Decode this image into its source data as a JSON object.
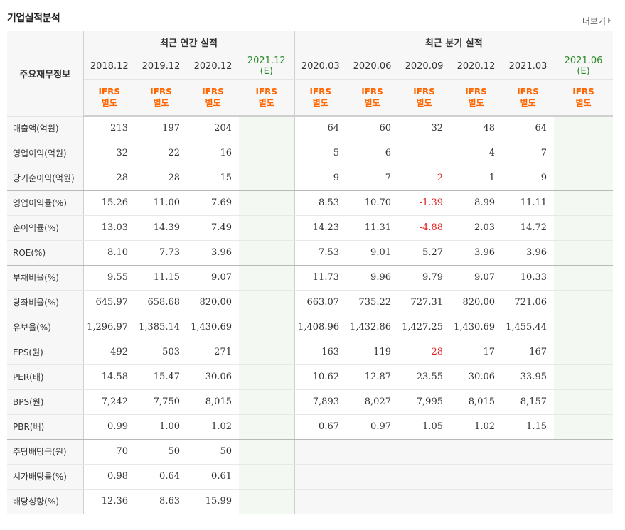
{
  "title": "기업실적분석",
  "more_label": "더보기",
  "header": {
    "row_label": "주요재무정보",
    "annual_label": "최근 연간 실적",
    "quarter_label": "최근 분기 실적",
    "annual_periods": [
      {
        "label": "2018.12",
        "est": ""
      },
      {
        "label": "2019.12",
        "est": ""
      },
      {
        "label": "2020.12",
        "est": ""
      },
      {
        "label": "2021.12",
        "est": "(E)"
      }
    ],
    "quarter_periods": [
      {
        "label": "2020.03",
        "est": ""
      },
      {
        "label": "2020.06",
        "est": ""
      },
      {
        "label": "2020.09",
        "est": ""
      },
      {
        "label": "2020.12",
        "est": ""
      },
      {
        "label": "2021.03",
        "est": ""
      },
      {
        "label": "2021.06",
        "est": "(E)"
      }
    ],
    "basis_line1": "IFRS",
    "basis_line2": "별도"
  },
  "colors": {
    "accent_orange": "#ff6600",
    "estimate_green": "#2a8a2a",
    "negative_red": "#e02020"
  },
  "rows": [
    {
      "label": "매출액(억원)",
      "group_end": false,
      "annual": [
        "213",
        "197",
        "204",
        ""
      ],
      "quarter": [
        "64",
        "60",
        "32",
        "48",
        "64",
        ""
      ]
    },
    {
      "label": "영업이익(억원)",
      "group_end": false,
      "annual": [
        "32",
        "22",
        "16",
        ""
      ],
      "quarter": [
        "5",
        "6",
        "-",
        "4",
        "7",
        ""
      ]
    },
    {
      "label": "당기순이익(억원)",
      "group_end": true,
      "annual": [
        "28",
        "28",
        "15",
        ""
      ],
      "quarter": [
        "9",
        "7",
        "-2",
        "1",
        "9",
        ""
      ]
    },
    {
      "label": "영업이익률(%)",
      "group_end": false,
      "annual": [
        "15.26",
        "11.00",
        "7.69",
        ""
      ],
      "quarter": [
        "8.53",
        "10.70",
        "-1.39",
        "8.99",
        "11.11",
        ""
      ]
    },
    {
      "label": "순이익률(%)",
      "group_end": false,
      "annual": [
        "13.03",
        "14.39",
        "7.49",
        ""
      ],
      "quarter": [
        "14.23",
        "11.31",
        "-4.88",
        "2.03",
        "14.72",
        ""
      ]
    },
    {
      "label": "ROE(%)",
      "group_end": true,
      "annual": [
        "8.10",
        "7.73",
        "3.96",
        ""
      ],
      "quarter": [
        "7.53",
        "9.01",
        "5.27",
        "3.96",
        "3.96",
        ""
      ]
    },
    {
      "label": "부채비율(%)",
      "group_end": false,
      "annual": [
        "9.55",
        "11.15",
        "9.07",
        ""
      ],
      "quarter": [
        "11.73",
        "9.96",
        "9.79",
        "9.07",
        "10.33",
        ""
      ]
    },
    {
      "label": "당좌비율(%)",
      "group_end": false,
      "annual": [
        "645.97",
        "658.68",
        "820.00",
        ""
      ],
      "quarter": [
        "663.07",
        "735.22",
        "727.31",
        "820.00",
        "721.06",
        ""
      ]
    },
    {
      "label": "유보율(%)",
      "group_end": true,
      "annual": [
        "1,296.97",
        "1,385.14",
        "1,430.69",
        ""
      ],
      "quarter": [
        "1,408.96",
        "1,432.86",
        "1,427.25",
        "1,430.69",
        "1,455.44",
        ""
      ]
    },
    {
      "label": "EPS(원)",
      "group_end": false,
      "annual": [
        "492",
        "503",
        "271",
        ""
      ],
      "quarter": [
        "163",
        "119",
        "-28",
        "17",
        "167",
        ""
      ]
    },
    {
      "label": "PER(배)",
      "group_end": false,
      "annual": [
        "14.58",
        "15.47",
        "30.06",
        ""
      ],
      "quarter": [
        "10.62",
        "12.87",
        "23.55",
        "30.06",
        "33.95",
        ""
      ]
    },
    {
      "label": "BPS(원)",
      "group_end": false,
      "annual": [
        "7,242",
        "7,750",
        "8,015",
        ""
      ],
      "quarter": [
        "7,893",
        "8,027",
        "7,995",
        "8,015",
        "8,157",
        ""
      ]
    },
    {
      "label": "PBR(배)",
      "group_end": true,
      "annual": [
        "0.99",
        "1.00",
        "1.02",
        ""
      ],
      "quarter": [
        "0.67",
        "0.97",
        "1.05",
        "1.02",
        "1.15",
        ""
      ]
    },
    {
      "label": "주당배당금(원)",
      "group_end": false,
      "annual": [
        "70",
        "50",
        "50",
        ""
      ],
      "quarter": [
        "",
        "",
        "",
        "",
        "",
        ""
      ],
      "quarter_empty": true
    },
    {
      "label": "시가배당률(%)",
      "group_end": false,
      "annual": [
        "0.98",
        "0.64",
        "0.61",
        ""
      ],
      "quarter": [
        "",
        "",
        "",
        "",
        "",
        ""
      ],
      "quarter_empty": true
    },
    {
      "label": "배당성향(%)",
      "group_end": false,
      "annual": [
        "12.36",
        "8.63",
        "15.99",
        ""
      ],
      "quarter": [
        "",
        "",
        "",
        "",
        "",
        ""
      ],
      "quarter_empty": true
    }
  ]
}
